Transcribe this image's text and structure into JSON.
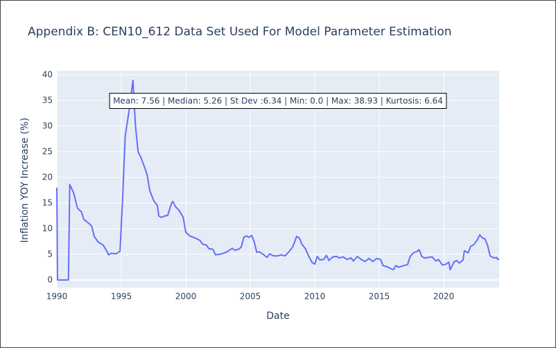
{
  "chart_data": {
    "type": "line",
    "title": "Appendix B: CEN10_612 Data Set Used For Model Parameter Estimation",
    "x_label": "Date",
    "y_label": "Inflation YOY Increase (%)",
    "annotation": "Mean: 7.56 | Median: 5.26 | St Dev :6.34 | Min: 0.0 | Max: 38.93 | Kurtosis: 6.64",
    "xlim": [
      1990,
      2024.3
    ],
    "ylim": [
      -1.5,
      40.8
    ],
    "xticks": [
      1990,
      1995,
      2000,
      2005,
      2010,
      2015,
      2020
    ],
    "yticks": [
      0,
      5,
      10,
      15,
      20,
      25,
      30,
      35,
      40
    ],
    "grid": true,
    "series": [
      {
        "color": "#636efa",
        "x": [
          1990.0,
          1990.05,
          1990.5,
          1990.9,
          1991.0,
          1991.3,
          1991.6,
          1991.9,
          1992.1,
          1992.5,
          1992.7,
          1992.9,
          1993.2,
          1993.6,
          1993.9,
          1994.0,
          1994.2,
          1994.6,
          1994.9,
          1995.1,
          1995.3,
          1995.6,
          1995.9,
          1996.1,
          1996.3,
          1996.5,
          1996.8,
          1997.0,
          1997.2,
          1997.5,
          1997.8,
          1997.9,
          1998.1,
          1998.4,
          1998.6,
          1998.9,
          1999.0,
          1999.2,
          1999.5,
          1999.8,
          2000.0,
          2000.3,
          2000.6,
          2000.9,
          2001.1,
          2001.3,
          2001.6,
          2001.8,
          2002.1,
          2002.3,
          2002.6,
          2002.9,
          2003.2,
          2003.6,
          2003.8,
          2004.1,
          2004.3,
          2004.5,
          2004.7,
          2004.9,
          2005.1,
          2005.3,
          2005.5,
          2005.7,
          2006.0,
          2006.3,
          2006.5,
          2006.8,
          2007.1,
          2007.4,
          2007.7,
          2008.0,
          2008.3,
          2008.6,
          2008.8,
          2009.0,
          2009.3,
          2009.5,
          2009.8,
          2010.0,
          2010.2,
          2010.4,
          2010.7,
          2010.9,
          2011.1,
          2011.4,
          2011.7,
          2011.9,
          2012.2,
          2012.5,
          2012.8,
          2013.0,
          2013.3,
          2013.6,
          2013.9,
          2014.2,
          2014.5,
          2014.8,
          2015.1,
          2015.3,
          2015.6,
          2015.9,
          2016.1,
          2016.3,
          2016.5,
          2016.9,
          2017.2,
          2017.4,
          2017.7,
          2017.9,
          2018.1,
          2018.3,
          2018.5,
          2018.8,
          2019.1,
          2019.4,
          2019.6,
          2019.9,
          2020.2,
          2020.4,
          2020.5,
          2020.8,
          2021.0,
          2021.2,
          2021.5,
          2021.6,
          2021.9,
          2022.1,
          2022.3,
          2022.6,
          2022.8,
          2023.0,
          2023.2,
          2023.4,
          2023.6,
          2023.9,
          2024.1,
          2024.2,
          2024.3
        ],
        "values": [
          18,
          0,
          0,
          0,
          18.6,
          17,
          14,
          13.3,
          11.8,
          11,
          10.5,
          8.5,
          7.4,
          6.8,
          5.5,
          4.9,
          5.2,
          5.1,
          5.6,
          16,
          28,
          33,
          38.93,
          30,
          25,
          24,
          22,
          20.5,
          17.5,
          15.5,
          14.5,
          12.5,
          12.2,
          12.5,
          12.6,
          15,
          15.3,
          14.3,
          13.5,
          12.2,
          9.3,
          8.6,
          8.3,
          8,
          7.7,
          7,
          6.8,
          6.1,
          6,
          4.9,
          5,
          5.2,
          5.5,
          6.2,
          5.8,
          6,
          6.4,
          8.3,
          8.6,
          8.3,
          8.7,
          7.5,
          5.4,
          5.5,
          5,
          4.4,
          5.1,
          4.7,
          4.7,
          4.9,
          4.7,
          5.5,
          6.5,
          8.5,
          8.2,
          7,
          6,
          4.8,
          3.4,
          3.1,
          4.6,
          3.9,
          4,
          4.8,
          3.8,
          4.5,
          4.6,
          4.3,
          4.5,
          4,
          4.3,
          3.7,
          4.6,
          4,
          3.6,
          4.2,
          3.6,
          4.2,
          4,
          2.8,
          2.6,
          2.2,
          2,
          2.8,
          2.5,
          2.8,
          3,
          4.6,
          5.4,
          5.5,
          5.9,
          4.6,
          4.3,
          4.4,
          4.5,
          3.7,
          4,
          2.9,
          3.1,
          3.5,
          2,
          3.5,
          3.8,
          3.3,
          3.9,
          5.7,
          5.3,
          6.6,
          6.8,
          7.8,
          8.8,
          8.2,
          8,
          6.8,
          4.7,
          4.3,
          4.4,
          4,
          4.1
        ]
      }
    ]
  }
}
